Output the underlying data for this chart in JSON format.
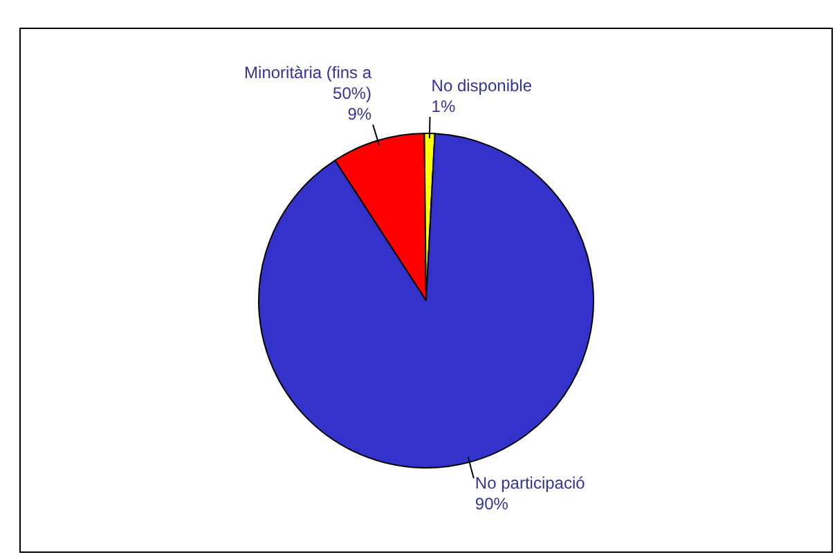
{
  "chart_data": {
    "type": "pie",
    "categories": [
      "Minoritària (fins a 50%)",
      "No disponible",
      "No participació"
    ],
    "values": [
      9,
      1,
      90
    ],
    "value_labels": [
      "9%",
      "1%",
      "90%"
    ],
    "colors": [
      "#ff0000",
      "#ffff00",
      "#3333cc"
    ],
    "legend": false
  }
}
